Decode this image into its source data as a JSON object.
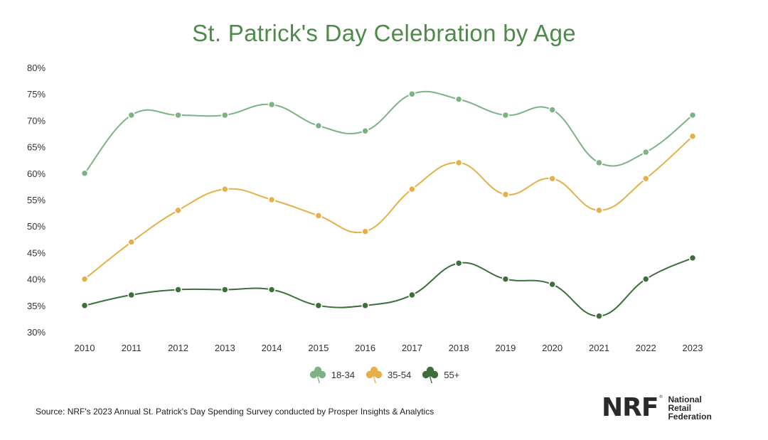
{
  "chart_data": {
    "type": "line",
    "title": "St. Patrick's Day Celebration by Age",
    "x": [
      "2010",
      "2011",
      "2012",
      "2013",
      "2014",
      "2015",
      "2016",
      "2017",
      "2018",
      "2019",
      "2020",
      "2021",
      "2022",
      "2023"
    ],
    "y_ticks": [
      "30%",
      "35%",
      "40%",
      "45%",
      "50%",
      "55%",
      "60%",
      "65%",
      "70%",
      "75%",
      "80%"
    ],
    "ylim": [
      30,
      80
    ],
    "series": [
      {
        "name": "18-34",
        "color": "#7db384",
        "values": [
          60,
          71,
          71,
          71,
          73,
          69,
          68,
          75,
          74,
          71,
          72,
          62,
          64,
          71
        ]
      },
      {
        "name": "35-54",
        "color": "#e5b04a",
        "values": [
          40,
          47,
          53,
          57,
          55,
          52,
          49,
          57,
          62,
          56,
          59,
          53,
          59,
          67
        ]
      },
      {
        "name": "55+",
        "color": "#3d6f3a",
        "values": [
          35,
          37,
          38,
          38,
          38,
          35,
          35,
          37,
          43,
          40,
          39,
          33,
          40,
          44
        ]
      }
    ],
    "legend_position": "bottom-center"
  },
  "source": "Source: NRF's 2023 Annual St. Patrick's Day Spending Survey conducted by Prosper Insights & Analytics",
  "logo": {
    "mark": "NRF",
    "line1": "National",
    "line2": "Retail",
    "line3": "Federation"
  }
}
